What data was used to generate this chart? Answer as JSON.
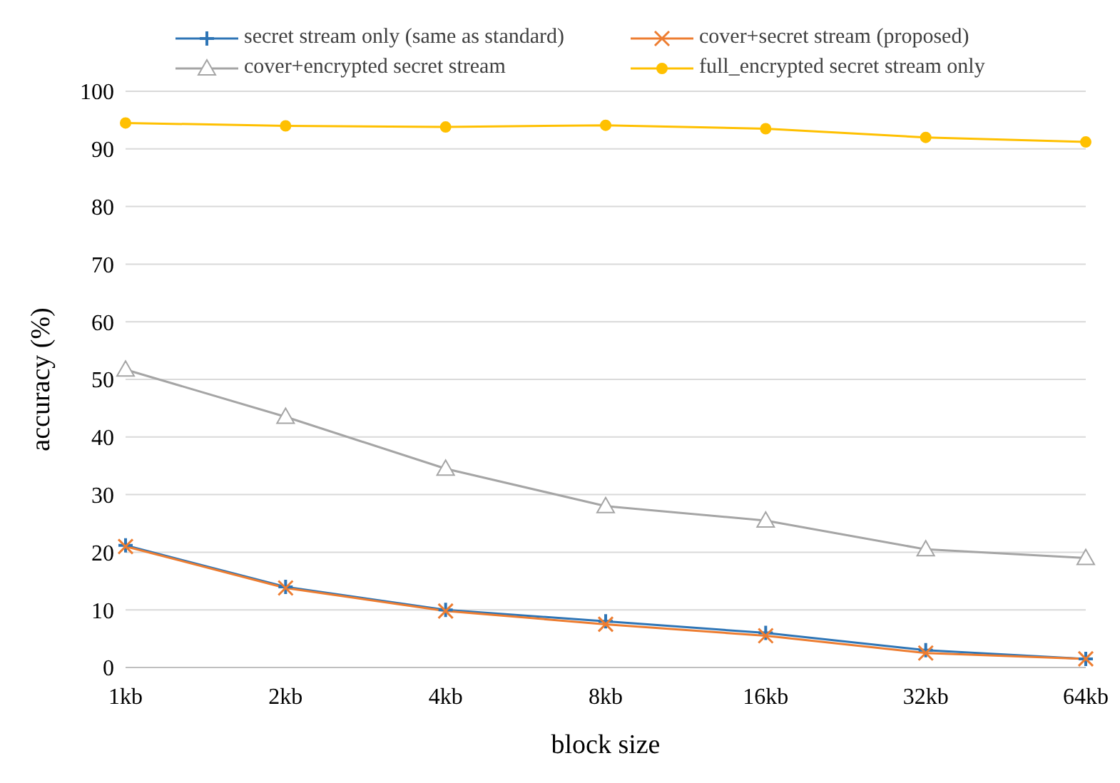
{
  "chart_data": {
    "type": "line",
    "xlabel": "block size",
    "ylabel": "accuracy (%)",
    "categories": [
      "1kb",
      "2kb",
      "4kb",
      "8kb",
      "16kb",
      "32kb",
      "64kb"
    ],
    "ylim": [
      0,
      100
    ],
    "yticks": [
      0,
      10,
      20,
      30,
      40,
      50,
      60,
      70,
      80,
      90,
      100
    ],
    "grid": "y",
    "legend": "top",
    "series": [
      {
        "name": "secret stream only (same as standard)",
        "color": "#2e75b6",
        "marker": "plus",
        "values": [
          21.2,
          14,
          10,
          8,
          6,
          3,
          1.5
        ]
      },
      {
        "name": "cover+secret stream (proposed)",
        "color": "#ed7d31",
        "marker": "cross",
        "values": [
          21,
          13.8,
          9.8,
          7.5,
          5.5,
          2.5,
          1.5
        ]
      },
      {
        "name": "cover+encrypted secret stream",
        "color": "#a5a5a5",
        "marker": "triangle",
        "values": [
          51.7,
          43.5,
          34.5,
          28,
          25.5,
          20.5,
          19
        ]
      },
      {
        "name": "full_encrypted secret stream only",
        "color": "#ffc000",
        "marker": "circle",
        "values": [
          94.5,
          94,
          93.8,
          94.1,
          93.5,
          92,
          91.2
        ]
      }
    ]
  }
}
